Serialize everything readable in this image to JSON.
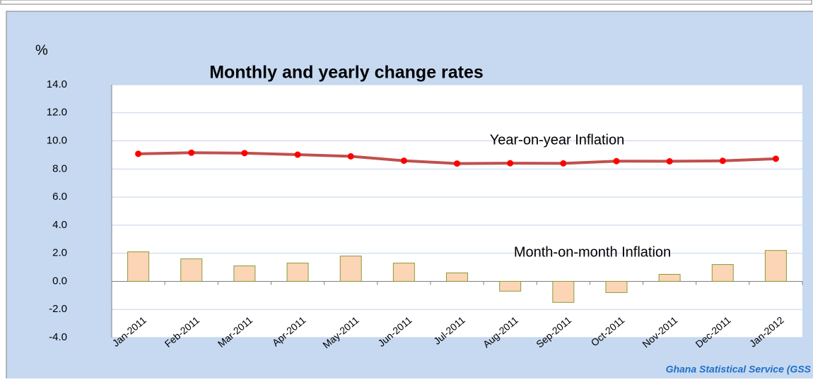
{
  "chart_data": {
    "type": "combo",
    "title": "Monthly and yearly change rates",
    "y_label": "%",
    "source": "Ghana Statistical Service (GSS",
    "categories": [
      "Jan-2011",
      "Feb-2011",
      "Mar-2011",
      "Apr-2011",
      "May-2011",
      "Jun-2011",
      "Jul-2011",
      "Aug-2011",
      "Sep-2011",
      "Oct-2011",
      "Nov-2011",
      "Dec-2011",
      "Jan-2012"
    ],
    "series": [
      {
        "name": "Year-on-year Inflation",
        "type": "line",
        "color": "#c0504d",
        "marker_color": "#ff0000",
        "values": [
          9.08,
          9.16,
          9.13,
          9.02,
          8.9,
          8.59,
          8.39,
          8.41,
          8.4,
          8.56,
          8.55,
          8.58,
          8.73
        ]
      },
      {
        "name": "Month-on-month Inflation",
        "type": "bar",
        "color": "#fbd5b5",
        "edge_color": "#8a9a3a",
        "values": [
          2.1,
          1.6,
          1.1,
          1.3,
          1.8,
          1.3,
          0.6,
          -0.7,
          -1.5,
          -0.8,
          0.5,
          1.2,
          2.2
        ]
      }
    ],
    "ylim": [
      -4,
      14
    ],
    "yticks": [
      {
        "value": -4,
        "label": "-4.0"
      },
      {
        "value": -2,
        "label": "-2.0"
      },
      {
        "value": 0,
        "label": "0.0"
      },
      {
        "value": 2,
        "label": "2.0"
      },
      {
        "value": 4,
        "label": "4.0"
      },
      {
        "value": 6,
        "label": "6.0"
      },
      {
        "value": 8,
        "label": "8.0"
      },
      {
        "value": 10,
        "label": "10.0"
      },
      {
        "value": 12,
        "label": "12.0"
      },
      {
        "value": 14,
        "label": "14.0"
      }
    ],
    "grid": true
  }
}
